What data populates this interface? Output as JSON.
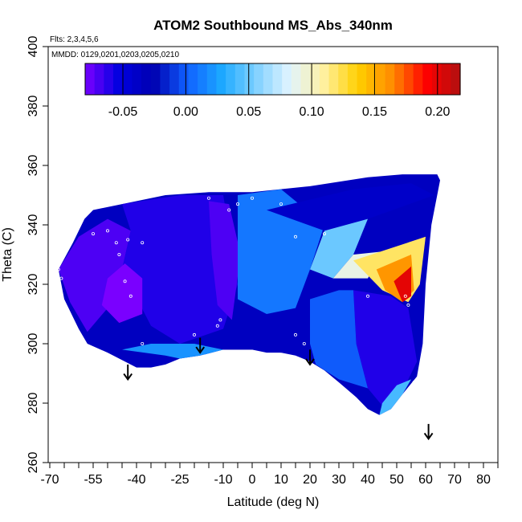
{
  "chart_data": {
    "type": "heatmap",
    "title": "ATOM2 Southbound MS_Abs_340nm",
    "annotations": [
      "Flts: 2,3,4,5,6",
      "MMDD: 0129,0201,0203,0205,0210"
    ],
    "xlabel": "Latitude (deg N)",
    "ylabel": "Theta (C)",
    "xlim": [
      -70,
      85
    ],
    "ylim": [
      260,
      400
    ],
    "x_ticks": [
      -70,
      -55,
      -40,
      -25,
      -10,
      0,
      10,
      20,
      30,
      40,
      50,
      60,
      70,
      80
    ],
    "x_ticklabels": [
      "-70",
      "-55",
      "-40",
      "-25",
      "-10",
      "0",
      "10",
      "20",
      "30",
      "40",
      "50",
      "60",
      "70",
      "80"
    ],
    "x_minor_ticks": [
      -65,
      -60,
      -50,
      -45,
      -35,
      -30,
      -20,
      -15,
      -5,
      5,
      15,
      25,
      35,
      45,
      55,
      65,
      75,
      85
    ],
    "y_ticks": [
      260,
      280,
      300,
      320,
      340,
      360,
      380,
      400
    ],
    "y_ticklabels": [
      "260",
      "280",
      "300",
      "320",
      "340",
      "360",
      "380",
      "400"
    ],
    "colorbar": {
      "range": [
        -0.08,
        0.218
      ],
      "ticks": [
        -0.05,
        0.0,
        0.05,
        0.1,
        0.15,
        0.2
      ],
      "ticklabels": [
        "-0.05",
        "0.00",
        "0.05",
        "0.10",
        "0.15",
        "0.20"
      ],
      "colors": [
        "#7a00ff",
        "#0000e0",
        "#0000b0",
        "#1060ff",
        "#1ca8ff",
        "#7fd0ff",
        "#e0f4ff",
        "#fff0a0",
        "#ffd000",
        "#ff8c00",
        "#ff0000",
        "#b01010"
      ]
    },
    "data_region_outline": [
      [
        -67,
        325
      ],
      [
        -62,
        334
      ],
      [
        -58,
        342
      ],
      [
        -55,
        345
      ],
      [
        -45,
        347
      ],
      [
        -30,
        350
      ],
      [
        -15,
        351
      ],
      [
        0,
        351
      ],
      [
        20,
        353
      ],
      [
        40,
        356
      ],
      [
        52,
        357
      ],
      [
        64,
        357
      ],
      [
        65,
        355
      ],
      [
        62,
        340
      ],
      [
        60,
        320
      ],
      [
        59,
        300
      ],
      [
        57,
        289
      ],
      [
        52,
        283
      ],
      [
        48,
        278
      ],
      [
        44,
        276
      ],
      [
        40,
        278
      ],
      [
        36,
        282
      ],
      [
        30,
        287
      ],
      [
        25,
        291
      ],
      [
        20,
        294
      ],
      [
        15,
        296
      ],
      [
        10,
        297
      ],
      [
        5,
        297
      ],
      [
        0,
        298
      ],
      [
        -10,
        298
      ],
      [
        -18,
        296
      ],
      [
        -25,
        295
      ],
      [
        -30,
        293
      ],
      [
        -35,
        292
      ],
      [
        -40,
        292
      ],
      [
        -50,
        297
      ],
      [
        -57,
        300
      ],
      [
        -60,
        305
      ],
      [
        -65,
        315
      ]
    ],
    "field_regions": [
      {
        "value": -0.07,
        "polygon": [
          [
            -67,
            325
          ],
          [
            -60,
            336
          ],
          [
            -50,
            342
          ],
          [
            -42,
            338
          ],
          [
            -45,
            325
          ],
          [
            -50,
            312
          ],
          [
            -57,
            304
          ],
          [
            -63,
            314
          ]
        ]
      },
      {
        "value": -0.06,
        "polygon": [
          [
            -45,
            347
          ],
          [
            -25,
            350
          ],
          [
            -10,
            350
          ],
          [
            -5,
            320
          ],
          [
            -10,
            305
          ],
          [
            -25,
            300
          ],
          [
            -35,
            306
          ],
          [
            -45,
            325
          ],
          [
            -42,
            338
          ]
        ]
      },
      {
        "value": -0.08,
        "polygon": [
          [
            -50,
            322
          ],
          [
            -44,
            327
          ],
          [
            -38,
            322
          ],
          [
            -38,
            310
          ],
          [
            -46,
            307
          ],
          [
            -52,
            313
          ]
        ]
      },
      {
        "value": -0.07,
        "polygon": [
          [
            -15,
            348
          ],
          [
            -8,
            347
          ],
          [
            -4,
            330
          ],
          [
            -7,
            308
          ],
          [
            -12,
            313
          ],
          [
            -14,
            330
          ]
        ]
      },
      {
        "value": -0.035,
        "polygon": [
          [
            -7,
            308
          ],
          [
            0,
            306
          ],
          [
            10,
            306
          ],
          [
            20,
            303
          ],
          [
            21,
            298
          ],
          [
            10,
            297
          ],
          [
            0,
            298
          ],
          [
            -10,
            298
          ]
        ]
      },
      {
        "value": 0.01,
        "polygon": [
          [
            -5,
            350
          ],
          [
            10,
            352
          ],
          [
            25,
            340
          ],
          [
            20,
            325
          ],
          [
            15,
            312
          ],
          [
            5,
            310
          ],
          [
            -5,
            315
          ]
        ]
      },
      {
        "value": -0.04,
        "polygon": [
          [
            5,
            345
          ],
          [
            35,
            352
          ],
          [
            55,
            354
          ],
          [
            63,
            350
          ],
          [
            40,
            342
          ],
          [
            25,
            338
          ]
        ]
      },
      {
        "value": 0.05,
        "polygon": [
          [
            20,
            325
          ],
          [
            25,
            338
          ],
          [
            40,
            342
          ],
          [
            35,
            330
          ],
          [
            28,
            322
          ]
        ]
      },
      {
        "value": 0.09,
        "polygon": [
          [
            28,
            322
          ],
          [
            35,
            330
          ],
          [
            45,
            331
          ],
          [
            40,
            322
          ]
        ]
      },
      {
        "value": 0.12,
        "polygon": [
          [
            35,
            328
          ],
          [
            60,
            336
          ],
          [
            58,
            320
          ],
          [
            54,
            314
          ],
          [
            45,
            318
          ]
        ]
      },
      {
        "value": 0.16,
        "polygon": [
          [
            43,
            325
          ],
          [
            55,
            330
          ],
          [
            56,
            318
          ],
          [
            52,
            314
          ],
          [
            46,
            318
          ]
        ]
      },
      {
        "value": 0.2,
        "polygon": [
          [
            49,
            321
          ],
          [
            55,
            326
          ],
          [
            55,
            316
          ],
          [
            52,
            314
          ]
        ]
      },
      {
        "value": -0.06,
        "polygon": [
          [
            35,
            318
          ],
          [
            48,
            316
          ],
          [
            54,
            312
          ],
          [
            57,
            294
          ],
          [
            52,
            284
          ],
          [
            46,
            278
          ],
          [
            40,
            285
          ],
          [
            36,
            300
          ]
        ]
      },
      {
        "value": 0.0,
        "polygon": [
          [
            20,
            315
          ],
          [
            30,
            318
          ],
          [
            35,
            318
          ],
          [
            36,
            300
          ],
          [
            40,
            285
          ],
          [
            30,
            288
          ],
          [
            22,
            293
          ],
          [
            20,
            300
          ]
        ]
      },
      {
        "value": 0.04,
        "polygon": [
          [
            44,
            276
          ],
          [
            48,
            278
          ],
          [
            52,
            283
          ],
          [
            55,
            288
          ],
          [
            50,
            286
          ],
          [
            45,
            280
          ]
        ]
      },
      {
        "value": 0.02,
        "polygon": [
          [
            -45,
            298
          ],
          [
            -30,
            296
          ],
          [
            -25,
            295
          ],
          [
            -18,
            296
          ],
          [
            -10,
            298
          ],
          [
            -20,
            300
          ],
          [
            -35,
            300
          ]
        ]
      }
    ],
    "sample_points": [
      [
        -67,
        325
      ],
      [
        -66,
        322
      ],
      [
        -64,
        336
      ],
      [
        -58,
        345
      ],
      [
        -55,
        337
      ],
      [
        -50,
        338
      ],
      [
        -47,
        334
      ],
      [
        -46,
        330
      ],
      [
        -43,
        335
      ],
      [
        -38,
        334
      ],
      [
        -44,
        321
      ],
      [
        -42,
        316
      ],
      [
        -38,
        300
      ],
      [
        -20,
        303
      ],
      [
        -12,
        306
      ],
      [
        -11,
        308
      ],
      [
        -8,
        345
      ],
      [
        -5,
        347
      ],
      [
        -15,
        349
      ],
      [
        0,
        349
      ],
      [
        10,
        347
      ],
      [
        15,
        303
      ],
      [
        18,
        300
      ],
      [
        15,
        336
      ],
      [
        25,
        337
      ],
      [
        40,
        316
      ],
      [
        53,
        316
      ],
      [
        54,
        313
      ],
      [
        58,
        290
      ],
      [
        56,
        287
      ],
      [
        48,
        277
      ]
    ],
    "arrows": [
      {
        "x": -43,
        "y_start": 293,
        "y_end": 288
      },
      {
        "x": -18,
        "y_start": 302,
        "y_end": 297
      },
      {
        "x": 20,
        "y_start": 298,
        "y_end": 293
      },
      {
        "x": 61,
        "y_start": 273,
        "y_end": 268
      }
    ]
  }
}
